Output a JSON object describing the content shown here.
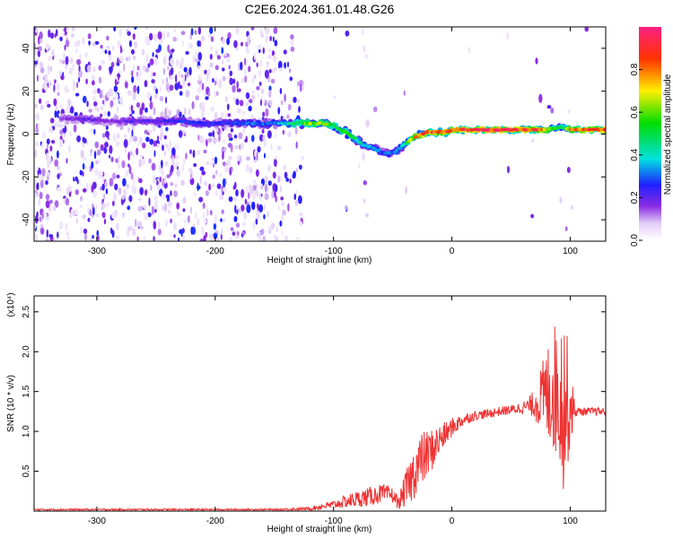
{
  "title": "C2E6.2024.361.01.48.G26",
  "spectrogram": {
    "xlabel": "Height of straight line (km)",
    "ylabel": "Frequency (Hz)",
    "xlim": [
      -353,
      130
    ],
    "ylim": [
      -50,
      50
    ],
    "xticks": [
      -300,
      -200,
      -100,
      0,
      100
    ],
    "yticks": [
      -40,
      -20,
      0,
      20,
      40
    ],
    "colorbar": {
      "label": "Normalized spectral amplitude",
      "range": [
        0.0,
        1.0
      ],
      "ticks": [
        "0.0",
        "0.2",
        "0.4",
        "0.6",
        "0.8"
      ]
    }
  },
  "chart_data": [
    {
      "type": "heatmap",
      "title": "C2E6.2024.361.01.48.G26",
      "xlabel": "Height of straight line (km)",
      "ylabel": "Frequency (Hz)",
      "xlim": [
        -353,
        130
      ],
      "ylim": [
        -50,
        50
      ],
      "colorscale": "rainbow",
      "ridge": {
        "x": [
          -330,
          -310,
          -290,
          -270,
          -250,
          -230,
          -210,
          -190,
          -170,
          -150,
          -140,
          -130,
          -120,
          -110,
          -100,
          -95,
          -90,
          -85,
          -80,
          -75,
          -70,
          -65,
          -60,
          -55,
          -50,
          -45,
          -40,
          -35,
          -30,
          -25,
          -20,
          -15,
          -10,
          -5,
          0,
          10,
          20,
          30,
          40,
          50,
          60,
          70,
          80,
          90,
          95,
          100,
          110,
          120,
          130
        ],
        "freq": [
          7,
          7,
          6,
          6,
          6,
          6,
          5,
          5,
          5,
          5,
          5,
          5,
          5,
          5,
          4,
          2,
          1,
          -1,
          -3,
          -5,
          -6,
          -7,
          -8,
          -9,
          -9,
          -7,
          -5,
          -3,
          -1,
          0,
          1,
          1,
          1,
          1,
          2,
          2,
          2,
          2,
          2,
          2,
          2,
          2,
          2,
          3,
          3,
          2,
          2,
          2,
          2
        ],
        "amplitude": [
          0.15,
          0.2,
          0.15,
          0.2,
          0.2,
          0.25,
          0.25,
          0.25,
          0.3,
          0.3,
          0.4,
          0.5,
          0.6,
          0.6,
          0.55,
          0.5,
          0.55,
          0.5,
          0.45,
          0.4,
          0.35,
          0.35,
          0.3,
          0.3,
          0.3,
          0.35,
          0.45,
          0.6,
          0.75,
          0.8,
          0.85,
          0.85,
          0.85,
          0.85,
          0.9,
          0.9,
          0.9,
          0.9,
          0.9,
          0.9,
          0.9,
          0.85,
          0.7,
          0.5,
          0.45,
          0.8,
          0.85,
          0.9,
          0.9
        ]
      }
    },
    {
      "type": "line",
      "xlabel": "Height of straight line (km)",
      "ylabel": "SNR (10 * v/v)",
      "y_multiplier": "(x10⁴)",
      "xlim": [
        -353,
        130
      ],
      "ylim": [
        0,
        2.7
      ],
      "xticks": [
        -300,
        -200,
        -100,
        0,
        100
      ],
      "yticks": [
        0.5,
        1.0,
        1.5,
        2.0,
        2.5
      ],
      "series": [
        {
          "color": "#ee3333",
          "x": [
            -353,
            -300,
            -250,
            -200,
            -150,
            -120,
            -110,
            -100,
            -90,
            -80,
            -70,
            -60,
            -50,
            -45,
            -40,
            -35,
            -30,
            -25,
            -20,
            -15,
            -10,
            -5,
            0,
            10,
            20,
            30,
            40,
            50,
            60,
            65,
            70,
            75,
            80,
            85,
            90,
            95,
            100,
            105,
            110,
            120,
            130
          ],
          "y": [
            0.02,
            0.02,
            0.02,
            0.02,
            0.02,
            0.03,
            0.06,
            0.08,
            0.12,
            0.15,
            0.18,
            0.22,
            0.2,
            0.1,
            0.25,
            0.38,
            0.55,
            0.65,
            0.72,
            0.8,
            0.9,
            0.97,
            1.05,
            1.15,
            1.2,
            1.22,
            1.25,
            1.27,
            1.3,
            1.32,
            1.35,
            1.4,
            1.45,
            1.55,
            1.5,
            1.4,
            1.3,
            1.25,
            1.25,
            1.25,
            1.25
          ],
          "noise_amplitude": [
            0.01,
            0.01,
            0.01,
            0.01,
            0.01,
            0.02,
            0.04,
            0.05,
            0.08,
            0.1,
            0.12,
            0.12,
            0.1,
            0.08,
            0.2,
            0.3,
            0.35,
            0.35,
            0.3,
            0.25,
            0.2,
            0.15,
            0.12,
            0.08,
            0.06,
            0.06,
            0.06,
            0.06,
            0.08,
            0.1,
            0.2,
            0.4,
            0.6,
            0.8,
            0.9,
            1.2,
            0.5,
            0.06,
            0.05,
            0.05,
            0.05
          ]
        }
      ]
    }
  ]
}
